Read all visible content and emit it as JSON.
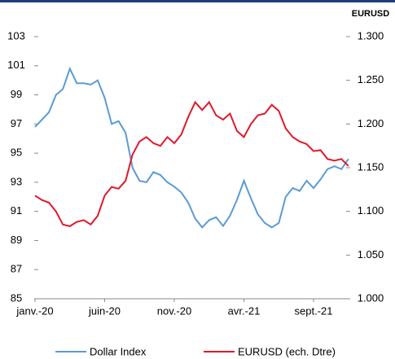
{
  "chart_data": {
    "type": "line",
    "y2label": "EURUSD",
    "categories": [
      "janv.-20",
      null,
      null,
      null,
      null,
      null,
      null,
      null,
      null,
      null,
      "juin-20",
      null,
      null,
      null,
      null,
      null,
      null,
      null,
      null,
      null,
      "nov.-20",
      null,
      null,
      null,
      null,
      null,
      null,
      null,
      null,
      null,
      "avr.-21",
      null,
      null,
      null,
      null,
      null,
      null,
      null,
      null,
      null,
      "sept.-21",
      null,
      null,
      null,
      null,
      null
    ],
    "series": [
      {
        "name": "Dollar Index",
        "color": "#5b9bd5",
        "axis": "y",
        "values": [
          96.8,
          97.3,
          97.8,
          99.0,
          99.4,
          100.8,
          99.8,
          99.8,
          99.7,
          100.0,
          98.8,
          97.0,
          97.2,
          96.4,
          94.0,
          93.1,
          93.0,
          93.7,
          93.5,
          93.0,
          92.7,
          92.3,
          91.6,
          90.5,
          89.9,
          90.4,
          90.6,
          90.0,
          90.7,
          91.8,
          93.1,
          91.9,
          90.8,
          90.2,
          89.9,
          90.2,
          92.0,
          92.6,
          92.4,
          93.1,
          92.6,
          93.2,
          93.9,
          94.1,
          93.9,
          94.6
        ]
      },
      {
        "name": "EURUSD (ech. Dtre)",
        "color": "#e0192a",
        "axis": "y2",
        "values": [
          1.118,
          1.113,
          1.11,
          1.1,
          1.085,
          1.083,
          1.088,
          1.09,
          1.085,
          1.095,
          1.118,
          1.128,
          1.126,
          1.135,
          1.165,
          1.18,
          1.185,
          1.178,
          1.175,
          1.185,
          1.178,
          1.188,
          1.208,
          1.225,
          1.216,
          1.225,
          1.21,
          1.205,
          1.212,
          1.192,
          1.185,
          1.2,
          1.21,
          1.212,
          1.222,
          1.215,
          1.195,
          1.185,
          1.18,
          1.177,
          1.169,
          1.17,
          1.16,
          1.158,
          1.16,
          1.152
        ]
      }
    ],
    "ylim": [
      85,
      103
    ],
    "yticks": [
      85,
      87,
      89,
      91,
      93,
      95,
      97,
      99,
      101,
      103
    ],
    "y2lim": [
      1.0,
      1.3
    ],
    "y2ticks": [
      {
        "value": 1.0,
        "label": "1.000"
      },
      {
        "value": 1.05,
        "label": "1.050"
      },
      {
        "value": 1.1,
        "label": "1.100"
      },
      {
        "value": 1.15,
        "label": "1.150"
      },
      {
        "value": 1.2,
        "label": "1.200"
      },
      {
        "value": 1.25,
        "label": "1.250"
      },
      {
        "value": 1.3,
        "label": "1.300"
      }
    ]
  }
}
